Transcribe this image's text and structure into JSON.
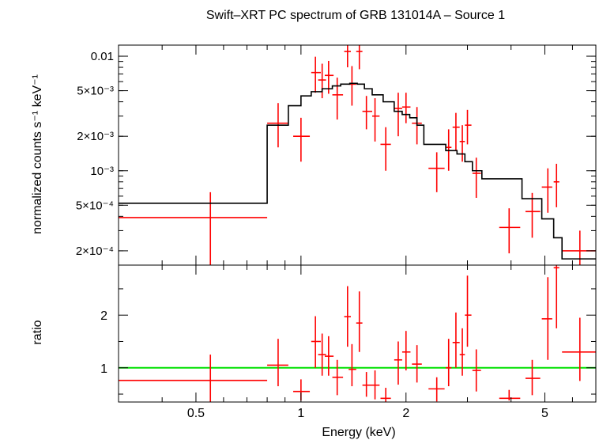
{
  "chart_data": [
    {
      "type": "scatter",
      "panel": "top",
      "title": "Swift–XRT PC spectrum of GRB 131014A – Source 1",
      "ylabel": "normalized counts s⁻¹ keV⁻¹",
      "xlabel": "",
      "xscale": "log",
      "yscale": "log",
      "xlim": [
        0.3,
        7.0
      ],
      "ylim": [
        0.00015,
        0.0125
      ],
      "yticks": [
        {
          "value": 0.01,
          "label": "0.01"
        },
        {
          "value": 0.005,
          "label": "5×10⁻³"
        },
        {
          "value": 0.002,
          "label": "2×10⁻³"
        },
        {
          "value": 0.001,
          "label": "10⁻³"
        },
        {
          "value": 0.0005,
          "label": "5×10⁻⁴"
        },
        {
          "value": 0.0002,
          "label": "2×10⁻⁴"
        }
      ],
      "grid": false,
      "legend": "none",
      "colors": {
        "data": "#ff0000",
        "model": "#000000"
      },
      "series": [
        {
          "kind": "data-with-errors",
          "points": [
            {
              "x": 0.55,
              "xlo": 0.3,
              "xhi": 0.8,
              "y": 0.00039,
              "ylo": 0.00014,
              "yhi": 0.00065
            },
            {
              "x": 0.86,
              "xlo": 0.8,
              "xhi": 0.92,
              "y": 0.0026,
              "ylo": 0.0016,
              "yhi": 0.0039
            },
            {
              "x": 1.0,
              "xlo": 0.95,
              "xhi": 1.06,
              "y": 0.002,
              "ylo": 0.0012,
              "yhi": 0.0029
            },
            {
              "x": 1.1,
              "xlo": 1.07,
              "xhi": 1.14,
              "y": 0.0072,
              "ylo": 0.0048,
              "yhi": 0.0099
            },
            {
              "x": 1.15,
              "xlo": 1.12,
              "xhi": 1.18,
              "y": 0.0062,
              "ylo": 0.0043,
              "yhi": 0.0086
            },
            {
              "x": 1.2,
              "xlo": 1.17,
              "xhi": 1.24,
              "y": 0.0068,
              "ylo": 0.0047,
              "yhi": 0.0091
            },
            {
              "x": 1.27,
              "xlo": 1.23,
              "xhi": 1.32,
              "y": 0.0046,
              "ylo": 0.0028,
              "yhi": 0.0065
            },
            {
              "x": 1.36,
              "xlo": 1.33,
              "xhi": 1.39,
              "y": 0.011,
              "ylo": 0.008,
              "yhi": 0.0128
            },
            {
              "x": 1.4,
              "xlo": 1.37,
              "xhi": 1.44,
              "y": 0.0057,
              "ylo": 0.0037,
              "yhi": 0.0082
            },
            {
              "x": 1.47,
              "xlo": 1.44,
              "xhi": 1.5,
              "y": 0.011,
              "ylo": 0.0077,
              "yhi": 0.0128
            },
            {
              "x": 1.54,
              "xlo": 1.5,
              "xhi": 1.6,
              "y": 0.0033,
              "ylo": 0.0023,
              "yhi": 0.0045
            },
            {
              "x": 1.63,
              "xlo": 1.6,
              "xhi": 1.68,
              "y": 0.003,
              "ylo": 0.0018,
              "yhi": 0.0043
            },
            {
              "x": 1.75,
              "xlo": 1.69,
              "xhi": 1.81,
              "y": 0.0017,
              "ylo": 0.001,
              "yhi": 0.0024
            },
            {
              "x": 1.9,
              "xlo": 1.85,
              "xhi": 1.95,
              "y": 0.0035,
              "ylo": 0.002,
              "yhi": 0.0048
            },
            {
              "x": 2.0,
              "xlo": 1.95,
              "xhi": 2.06,
              "y": 0.0036,
              "ylo": 0.0026,
              "yhi": 0.0048
            },
            {
              "x": 2.15,
              "xlo": 2.08,
              "xhi": 2.22,
              "y": 0.0026,
              "ylo": 0.0017,
              "yhi": 0.0036
            },
            {
              "x": 2.45,
              "xlo": 2.32,
              "xhi": 2.58,
              "y": 0.00105,
              "ylo": 0.00065,
              "yhi": 0.00145
            },
            {
              "x": 2.65,
              "xlo": 2.6,
              "xhi": 2.7,
              "y": 0.0016,
              "ylo": 0.001,
              "yhi": 0.0023
            },
            {
              "x": 2.78,
              "xlo": 2.72,
              "xhi": 2.85,
              "y": 0.0024,
              "ylo": 0.0015,
              "yhi": 0.0032
            },
            {
              "x": 2.9,
              "xlo": 2.85,
              "xhi": 2.95,
              "y": 0.0018,
              "ylo": 0.0012,
              "yhi": 0.0025
            },
            {
              "x": 3.0,
              "xlo": 2.95,
              "xhi": 3.08,
              "y": 0.0025,
              "ylo": 0.0017,
              "yhi": 0.0034
            },
            {
              "x": 3.18,
              "xlo": 3.1,
              "xhi": 3.28,
              "y": 0.00095,
              "ylo": 0.00058,
              "yhi": 0.0013
            },
            {
              "x": 3.95,
              "xlo": 3.7,
              "xhi": 4.25,
              "y": 0.00032,
              "ylo": 0.00019,
              "yhi": 0.00047
            },
            {
              "x": 4.6,
              "xlo": 4.4,
              "xhi": 4.85,
              "y": 0.00044,
              "ylo": 0.00026,
              "yhi": 0.00064
            },
            {
              "x": 5.1,
              "xlo": 4.9,
              "xhi": 5.25,
              "y": 0.00072,
              "ylo": 0.00043,
              "yhi": 0.00105
            },
            {
              "x": 5.4,
              "xlo": 5.3,
              "xhi": 5.5,
              "y": 0.0008,
              "ylo": 0.00048,
              "yhi": 0.00115
            },
            {
              "x": 6.3,
              "xlo": 5.6,
              "xhi": 7.0,
              "y": 0.0002,
              "ylo": 0.00015,
              "yhi": 0.0003
            }
          ]
        },
        {
          "kind": "model-step",
          "steps": [
            {
              "x0": 0.3,
              "x1": 0.8,
              "y": 0.00052
            },
            {
              "x0": 0.8,
              "x1": 0.92,
              "y": 0.0025
            },
            {
              "x0": 0.92,
              "x1": 1.0,
              "y": 0.0037
            },
            {
              "x0": 1.0,
              "x1": 1.07,
              "y": 0.0045
            },
            {
              "x0": 1.07,
              "x1": 1.15,
              "y": 0.0049
            },
            {
              "x0": 1.15,
              "x1": 1.23,
              "y": 0.0052
            },
            {
              "x0": 1.23,
              "x1": 1.3,
              "y": 0.0055
            },
            {
              "x0": 1.3,
              "x1": 1.38,
              "y": 0.0057
            },
            {
              "x0": 1.38,
              "x1": 1.45,
              "y": 0.0058
            },
            {
              "x0": 1.45,
              "x1": 1.52,
              "y": 0.0057
            },
            {
              "x0": 1.52,
              "x1": 1.6,
              "y": 0.0052
            },
            {
              "x0": 1.6,
              "x1": 1.72,
              "y": 0.0046
            },
            {
              "x0": 1.72,
              "x1": 1.85,
              "y": 0.004
            },
            {
              "x0": 1.85,
              "x1": 1.95,
              "y": 0.0033
            },
            {
              "x0": 1.95,
              "x1": 2.05,
              "y": 0.0031
            },
            {
              "x0": 2.05,
              "x1": 2.15,
              "y": 0.0029
            },
            {
              "x0": 2.15,
              "x1": 2.25,
              "y": 0.0025
            },
            {
              "x0": 2.25,
              "x1": 2.6,
              "y": 0.0017
            },
            {
              "x0": 2.6,
              "x1": 2.8,
              "y": 0.0015
            },
            {
              "x0": 2.8,
              "x1": 2.95,
              "y": 0.0014
            },
            {
              "x0": 2.95,
              "x1": 3.1,
              "y": 0.0012
            },
            {
              "x0": 3.1,
              "x1": 3.3,
              "y": 0.001
            },
            {
              "x0": 3.3,
              "x1": 4.3,
              "y": 0.00085
            },
            {
              "x0": 4.3,
              "x1": 4.9,
              "y": 0.00057
            },
            {
              "x0": 4.9,
              "x1": 5.3,
              "y": 0.00038
            },
            {
              "x0": 5.3,
              "x1": 5.6,
              "y": 0.00026
            },
            {
              "x0": 5.6,
              "x1": 7.0,
              "y": 0.00017
            }
          ]
        }
      ]
    },
    {
      "type": "scatter",
      "panel": "bottom",
      "xlabel": "Energy (keV)",
      "ylabel": "ratio",
      "xscale": "log",
      "yscale": "linear",
      "xlim": [
        0.3,
        7.0
      ],
      "ylim": [
        0.35,
        2.95
      ],
      "xticks": [
        {
          "value": 0.5,
          "label": "0.5"
        },
        {
          "value": 1,
          "label": "1"
        },
        {
          "value": 2,
          "label": "2"
        },
        {
          "value": 5,
          "label": "5"
        }
      ],
      "yticks": [
        {
          "value": 1,
          "label": "1"
        },
        {
          "value": 2,
          "label": "2"
        }
      ],
      "reference_line": {
        "y": 1,
        "color": "#00e000"
      },
      "grid": false,
      "legend": "none",
      "colors": {
        "data": "#ff0000"
      },
      "series": [
        {
          "kind": "ratio-with-errors",
          "points": [
            {
              "x": 0.55,
              "xlo": 0.3,
              "xhi": 0.8,
              "y": 0.76,
              "ylo": 0.3,
              "yhi": 1.25
            },
            {
              "x": 0.86,
              "xlo": 0.8,
              "xhi": 0.92,
              "y": 1.05,
              "ylo": 0.65,
              "yhi": 1.55
            },
            {
              "x": 1.0,
              "xlo": 0.95,
              "xhi": 1.06,
              "y": 0.55,
              "ylo": 0.38,
              "yhi": 0.78
            },
            {
              "x": 1.1,
              "xlo": 1.07,
              "xhi": 1.14,
              "y": 1.5,
              "ylo": 1.0,
              "yhi": 1.98
            },
            {
              "x": 1.15,
              "xlo": 1.12,
              "xhi": 1.18,
              "y": 1.25,
              "ylo": 0.85,
              "yhi": 1.65
            },
            {
              "x": 1.2,
              "xlo": 1.17,
              "xhi": 1.24,
              "y": 1.22,
              "ylo": 0.85,
              "yhi": 1.6
            },
            {
              "x": 1.27,
              "xlo": 1.23,
              "xhi": 1.32,
              "y": 0.82,
              "ylo": 0.48,
              "yhi": 1.15
            },
            {
              "x": 1.36,
              "xlo": 1.33,
              "xhi": 1.39,
              "y": 1.97,
              "ylo": 1.4,
              "yhi": 2.55
            },
            {
              "x": 1.4,
              "xlo": 1.37,
              "xhi": 1.44,
              "y": 0.97,
              "ylo": 0.65,
              "yhi": 1.45
            },
            {
              "x": 1.47,
              "xlo": 1.44,
              "xhi": 1.5,
              "y": 1.85,
              "ylo": 1.3,
              "yhi": 2.45
            },
            {
              "x": 1.54,
              "xlo": 1.5,
              "xhi": 1.6,
              "y": 0.67,
              "ylo": 0.45,
              "yhi": 0.92
            },
            {
              "x": 1.63,
              "xlo": 1.6,
              "xhi": 1.68,
              "y": 0.67,
              "ylo": 0.4,
              "yhi": 0.95
            },
            {
              "x": 1.75,
              "xlo": 1.69,
              "xhi": 1.81,
              "y": 0.42,
              "ylo": 0.35,
              "yhi": 0.62
            },
            {
              "x": 1.9,
              "xlo": 1.85,
              "xhi": 1.95,
              "y": 1.15,
              "ylo": 0.68,
              "yhi": 1.5
            },
            {
              "x": 2.0,
              "xlo": 1.95,
              "xhi": 2.06,
              "y": 1.3,
              "ylo": 0.95,
              "yhi": 1.7
            },
            {
              "x": 2.15,
              "xlo": 2.08,
              "xhi": 2.22,
              "y": 1.07,
              "ylo": 0.72,
              "yhi": 1.43
            },
            {
              "x": 2.45,
              "xlo": 2.32,
              "xhi": 2.58,
              "y": 0.6,
              "ylo": 0.36,
              "yhi": 0.82
            },
            {
              "x": 2.65,
              "xlo": 2.6,
              "xhi": 2.7,
              "y": 1.0,
              "ylo": 0.65,
              "yhi": 1.55
            },
            {
              "x": 2.78,
              "xlo": 2.72,
              "xhi": 2.85,
              "y": 1.48,
              "ylo": 1.0,
              "yhi": 2.05
            },
            {
              "x": 2.9,
              "xlo": 2.85,
              "xhi": 2.95,
              "y": 1.25,
              "ylo": 0.85,
              "yhi": 1.75
            },
            {
              "x": 3.0,
              "xlo": 2.95,
              "xhi": 3.08,
              "y": 2.0,
              "ylo": 1.4,
              "yhi": 2.75
            },
            {
              "x": 3.18,
              "xlo": 3.1,
              "xhi": 3.28,
              "y": 0.95,
              "ylo": 0.55,
              "yhi": 1.35
            },
            {
              "x": 3.95,
              "xlo": 3.7,
              "xhi": 4.25,
              "y": 0.42,
              "ylo": 0.38,
              "yhi": 0.58
            },
            {
              "x": 4.6,
              "xlo": 4.4,
              "xhi": 4.85,
              "y": 0.8,
              "ylo": 0.48,
              "yhi": 1.15
            },
            {
              "x": 5.1,
              "xlo": 4.9,
              "xhi": 5.25,
              "y": 1.93,
              "ylo": 1.15,
              "yhi": 2.72
            },
            {
              "x": 5.4,
              "xlo": 5.3,
              "xhi": 5.5,
              "y": 2.9,
              "ylo": 1.75,
              "yhi": 2.95
            },
            {
              "x": 6.3,
              "xlo": 5.6,
              "xhi": 7.0,
              "y": 1.3,
              "ylo": 0.75,
              "yhi": 1.95
            }
          ]
        }
      ]
    }
  ]
}
